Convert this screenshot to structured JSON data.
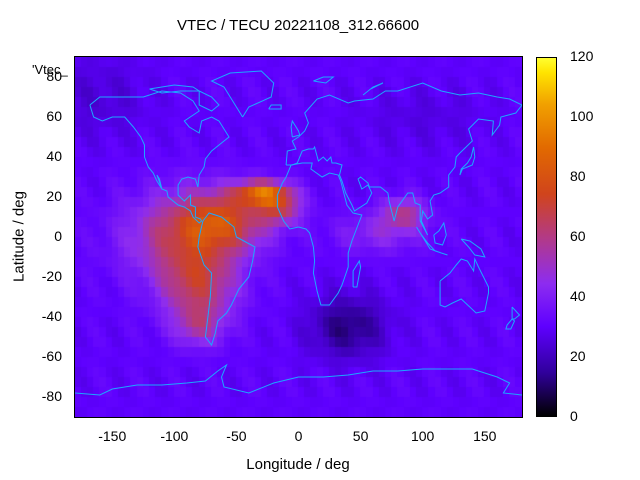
{
  "title": "VTEC / TECU 20221108_312.66600",
  "key_label": "'Vtec_",
  "axes": {
    "xlabel": "Longitude / deg",
    "ylabel": "Latitude / deg",
    "xlim": [
      -180,
      180
    ],
    "ylim": [
      -90,
      90
    ],
    "xticks": [
      "-150",
      "-100",
      "-50",
      "0",
      "50",
      "100",
      "150"
    ],
    "yticks": [
      "80",
      "60",
      "40",
      "20",
      "0",
      "-20",
      "-40",
      "-60",
      "-80"
    ]
  },
  "colorbar": {
    "range": [
      0,
      120
    ],
    "ticks": [
      "120",
      "100",
      "80",
      "60",
      "40",
      "20",
      "0"
    ],
    "colors": [
      "#000000",
      "#5e00ff",
      "#b33a85",
      "#e26a00",
      "#ffff30"
    ]
  },
  "chart_data": {
    "type": "heatmap",
    "title": "VTEC / TECU 20221108_312.66600",
    "xlabel": "Longitude / deg",
    "ylabel": "Latitude / deg",
    "xlim": [
      -180,
      180
    ],
    "ylim": [
      -90,
      90
    ],
    "zlim": [
      0,
      120
    ],
    "unit": "TECU",
    "anomaly_features": [
      {
        "lon": -100,
        "lat": 2,
        "vtec": 62
      },
      {
        "lon": -55,
        "lat": 10,
        "vtec": 75
      },
      {
        "lon": -28,
        "lat": 22,
        "vtec": 85
      },
      {
        "lon": -15,
        "lat": 14,
        "vtec": 70
      },
      {
        "lon": -80,
        "lat": -25,
        "vtec": 65
      },
      {
        "lon": -80,
        "lat": -45,
        "vtec": 55
      },
      {
        "lon": 85,
        "lat": 12,
        "vtec": 60
      },
      {
        "lon": 70,
        "lat": 0,
        "vtec": 45
      },
      {
        "lon": 40,
        "lat": -45,
        "vtec": 12
      },
      {
        "lon": 0,
        "lat": 80,
        "vtec": 20
      },
      {
        "lon": 0,
        "lat": -80,
        "vtec": 22
      }
    ],
    "background_vtec": 30
  },
  "coastline_color": "#1ca8ff"
}
